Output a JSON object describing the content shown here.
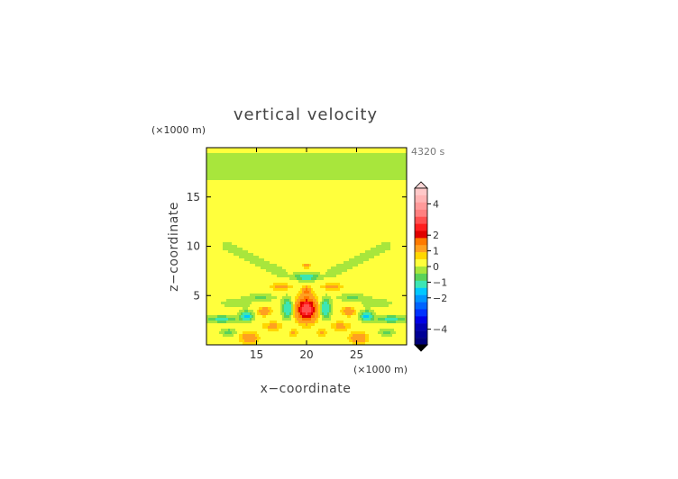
{
  "chart_data": {
    "type": "heatmap",
    "title": "vertical velocity",
    "xlabel": "x−coordinate",
    "ylabel": "z−coordinate",
    "x_unit": "(×1000 m)",
    "y_unit": "(×1000 m)",
    "time_label": "4320 s",
    "xlim": [
      10,
      30
    ],
    "ylim": [
      0,
      20
    ],
    "x_ticks": [
      15,
      20,
      25
    ],
    "y_ticks": [
      5,
      10,
      15
    ],
    "colorbar": {
      "tick_values": [
        4,
        2,
        1,
        0,
        -1,
        -2,
        -4
      ],
      "tick_labels": [
        "4",
        "2",
        "1",
        "0",
        "−1",
        "−2",
        "−4"
      ],
      "levels": [
        {
          "max": 5.0,
          "color": "#ffc8c8"
        },
        {
          "max": 4.5,
          "color": "#ffb4b4"
        },
        {
          "max": 4.0,
          "color": "#ff9a9a"
        },
        {
          "max": 3.5,
          "color": "#ff8080"
        },
        {
          "max": 3.0,
          "color": "#ff5050"
        },
        {
          "max": 2.5,
          "color": "#ff1e1e"
        },
        {
          "max": 2.0,
          "color": "#e00000"
        },
        {
          "max": 1.5,
          "color": "#ff7a00"
        },
        {
          "max": 1.0,
          "color": "#ffa020"
        },
        {
          "max": 0.5,
          "color": "#ffd700"
        },
        {
          "max": 0.25,
          "color": "#ffff3c"
        },
        {
          "max": 0.0,
          "color": "#a8e63c"
        },
        {
          "max": -0.25,
          "color": "#5ad25a"
        },
        {
          "max": -0.5,
          "color": "#3ce6b4"
        },
        {
          "max": -1.0,
          "color": "#00c8ff"
        },
        {
          "max": -1.5,
          "color": "#0096ff"
        },
        {
          "max": -2.0,
          "color": "#0064ff"
        },
        {
          "max": -2.5,
          "color": "#0032ff"
        },
        {
          "max": -3.0,
          "color": "#0000e6"
        },
        {
          "max": -3.5,
          "color": "#0000b4"
        },
        {
          "max": -4.0,
          "color": "#000096"
        },
        {
          "max": -4.5,
          "color": "#00007a"
        }
      ],
      "over_color": "#ffd8d8",
      "under_color": "#000000"
    },
    "background_value": 0.1,
    "features": [
      {
        "kind": "band",
        "zc": 18.0,
        "w": 1.8,
        "amp": -0.18
      },
      {
        "kind": "blob",
        "x": 20.0,
        "z": 3.6,
        "sx": 0.9,
        "sz": 1.1,
        "amp": 2.9
      },
      {
        "kind": "blob",
        "x": 20.0,
        "z": 5.5,
        "sx": 0.45,
        "sz": 0.45,
        "amp": 0.9
      },
      {
        "kind": "blob",
        "x": 20.0,
        "z": 6.9,
        "sx": 1.2,
        "sz": 0.35,
        "amp": -0.9
      },
      {
        "kind": "blob",
        "x": 20.0,
        "z": 8.0,
        "sx": 0.35,
        "sz": 0.3,
        "amp": 0.6
      },
      {
        "kind": "blob",
        "x": 18.1,
        "z": 3.7,
        "sx": 0.5,
        "sz": 0.9,
        "amp": -1.1
      },
      {
        "kind": "blob",
        "x": 21.9,
        "z": 3.7,
        "sx": 0.5,
        "sz": 0.9,
        "amp": -1.1
      },
      {
        "kind": "blob",
        "x": 17.4,
        "z": 5.9,
        "sx": 1.0,
        "sz": 0.3,
        "amp": 0.6
      },
      {
        "kind": "blob",
        "x": 22.6,
        "z": 5.9,
        "sx": 1.0,
        "sz": 0.3,
        "amp": 0.6
      },
      {
        "kind": "blob",
        "x": 15.4,
        "z": 4.8,
        "sx": 1.4,
        "sz": 0.3,
        "amp": -0.4
      },
      {
        "kind": "blob",
        "x": 24.6,
        "z": 4.8,
        "sx": 1.4,
        "sz": 0.3,
        "amp": -0.4
      },
      {
        "kind": "blob",
        "x": 15.8,
        "z": 3.4,
        "sx": 0.6,
        "sz": 0.4,
        "amp": 0.9
      },
      {
        "kind": "blob",
        "x": 24.2,
        "z": 3.4,
        "sx": 0.6,
        "sz": 0.4,
        "amp": 0.9
      },
      {
        "kind": "blob",
        "x": 16.6,
        "z": 1.9,
        "sx": 0.9,
        "sz": 0.4,
        "amp": 0.55
      },
      {
        "kind": "blob",
        "x": 23.4,
        "z": 1.9,
        "sx": 0.9,
        "sz": 0.4,
        "amp": 0.55
      },
      {
        "kind": "blob",
        "x": 14.0,
        "z": 2.9,
        "sx": 0.55,
        "sz": 0.45,
        "amp": -1.4
      },
      {
        "kind": "blob",
        "x": 26.0,
        "z": 2.9,
        "sx": 0.55,
        "sz": 0.45,
        "amp": -1.4
      },
      {
        "kind": "blob",
        "x": 14.3,
        "z": 0.7,
        "sx": 0.8,
        "sz": 0.55,
        "amp": 0.9
      },
      {
        "kind": "blob",
        "x": 25.2,
        "z": 0.7,
        "sx": 0.8,
        "sz": 0.55,
        "amp": 0.9
      },
      {
        "kind": "blob",
        "x": 21.5,
        "z": 1.2,
        "sx": 0.45,
        "sz": 0.35,
        "amp": 0.5
      },
      {
        "kind": "blob",
        "x": 18.7,
        "z": 1.2,
        "sx": 0.45,
        "sz": 0.35,
        "amp": 0.5
      },
      {
        "kind": "blob",
        "x": 11.5,
        "z": 2.6,
        "sx": 1.6,
        "sz": 0.35,
        "amp": -0.7
      },
      {
        "kind": "blob",
        "x": 28.5,
        "z": 2.6,
        "sx": 1.6,
        "sz": 0.35,
        "amp": -0.7
      },
      {
        "kind": "blob",
        "x": 28.0,
        "z": 1.3,
        "sx": 0.7,
        "sz": 0.35,
        "amp": -0.5
      },
      {
        "kind": "blob",
        "x": 12.2,
        "z": 1.3,
        "sx": 0.7,
        "sz": 0.35,
        "amp": -0.5
      },
      {
        "kind": "blob",
        "x": 13.0,
        "z": 4.2,
        "sx": 1.8,
        "sz": 0.5,
        "amp": -0.2
      },
      {
        "kind": "blob",
        "x": 27.0,
        "z": 4.2,
        "sx": 1.8,
        "sz": 0.5,
        "amp": -0.2
      },
      {
        "kind": "arm",
        "x0": 17.5,
        "z0": 7.3,
        "x1": 12.0,
        "z1": 10.0,
        "w": 0.55,
        "amp": -0.2
      },
      {
        "kind": "arm",
        "x0": 22.5,
        "z0": 7.3,
        "x1": 28.0,
        "z1": 10.0,
        "w": 0.55,
        "amp": -0.2
      }
    ]
  }
}
